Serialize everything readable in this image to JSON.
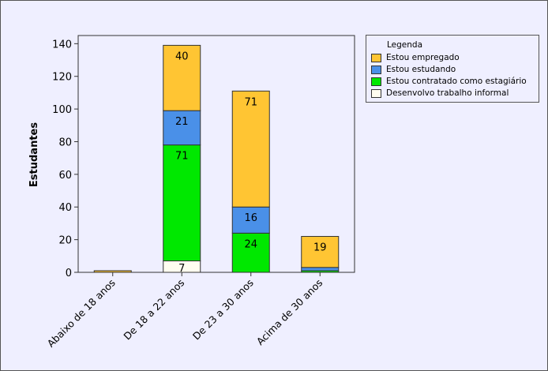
{
  "colors": {
    "background": "#efefff",
    "Estou empregado": "#ffc533",
    "Estou estudando": "#4a90e8",
    "Estou contratado como estagiário": "#00e800",
    "Desenvolvo trabalho informal": "#fffdf0"
  },
  "legend": {
    "title": "Legenda",
    "items": [
      {
        "label": "Estou empregado",
        "color": "#ffc533"
      },
      {
        "label": "Estou estudando",
        "color": "#4a90e8"
      },
      {
        "label": "Estou contratado como estagiário",
        "color": "#00e800"
      },
      {
        "label": "Desenvolvo trabalho informal",
        "color": "#fffdf0"
      }
    ]
  },
  "chart_data": {
    "type": "bar",
    "stacked": true,
    "ylabel": "Estudantes",
    "xlabel": "",
    "ylim": [
      0,
      145
    ],
    "yticks": [
      0,
      20,
      40,
      60,
      80,
      100,
      120,
      140
    ],
    "categories": [
      "Abaixo de 18 anos",
      "De 18 a 22 anos",
      "De 23 a 30 anos",
      "Acima de 30 anos"
    ],
    "series": [
      {
        "name": "Desenvolvo trabalho informal",
        "values": [
          0,
          7,
          0,
          0
        ],
        "labels": [
          "",
          "7",
          "",
          ""
        ]
      },
      {
        "name": "Estou contratado como estagiário",
        "values": [
          0,
          71,
          24,
          1
        ],
        "labels": [
          "",
          "71",
          "24",
          ""
        ]
      },
      {
        "name": "Estou estudando",
        "values": [
          0,
          21,
          16,
          2
        ],
        "labels": [
          "",
          "21",
          "16",
          ""
        ]
      },
      {
        "name": "Estou empregado",
        "values": [
          1,
          40,
          71,
          19
        ],
        "labels": [
          "",
          "40",
          "71",
          "19"
        ]
      }
    ],
    "legend_position": "top-right",
    "grid": false
  }
}
